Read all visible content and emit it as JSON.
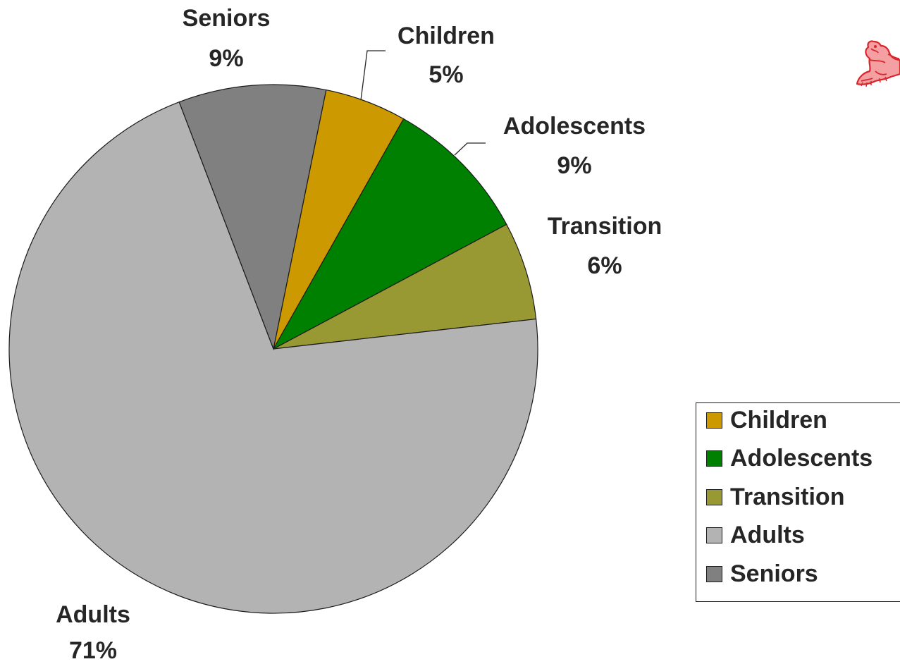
{
  "chart_data": {
    "type": "pie",
    "title": "",
    "slices": [
      {
        "name": "Children",
        "value": 5,
        "label": "Children",
        "pct_label": "5%",
        "color": "#cc9a00"
      },
      {
        "name": "Adolescents",
        "value": 9,
        "label": "Adolescents",
        "pct_label": "9%",
        "color": "#008000"
      },
      {
        "name": "Transition",
        "value": 6,
        "label": "Transition",
        "pct_label": "6%",
        "color": "#999933"
      },
      {
        "name": "Adults",
        "value": 71,
        "label": "Adults",
        "pct_label": "71%",
        "color": "#b3b3b3"
      },
      {
        "name": "Seniors",
        "value": 9,
        "label": "Seniors",
        "pct_label": "9%",
        "color": "#808080"
      }
    ],
    "legend": {
      "placement": "right",
      "entries": [
        "Children",
        "Adolescents",
        "Transition",
        "Adults",
        "Seniors"
      ]
    }
  },
  "logo": {
    "icon": "red-mascot-icon",
    "color": "#e8383d"
  }
}
